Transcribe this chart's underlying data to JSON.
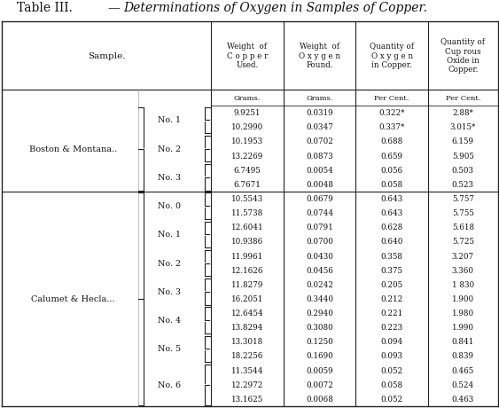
{
  "title_normal": "Table III.",
  "title_em_dash": "—",
  "title_italic": "Determinations of Oxygen in Samples of Copper.",
  "bg_color": "#ffffff",
  "text_color": "#111111",
  "col_headers": [
    "Weight  of\nC o p p e r\nUsed.",
    "Weight  of\nO x y g e n\nFound.",
    "Quantity of\nO x y g e n\nin Copper.",
    "Quantity of\nCup rous\nOxide in\nCopper."
  ],
  "col_subheaders": [
    "Grams.",
    "Grams.",
    "Per Cent.",
    "Per Cent."
  ],
  "groups": [
    {
      "label": "Boston & Montana..",
      "subgroups": [
        {
          "sub_label": "No. 1",
          "rows": [
            [
              "9.9251",
              "0.0319",
              "0.322*",
              "2.88*"
            ],
            [
              "10.2990",
              "0.0347",
              "0.337*",
              "3.015*"
            ]
          ]
        },
        {
          "sub_label": "No. 2",
          "rows": [
            [
              "10.1953",
              "0.0702",
              "0.688",
              "6.159"
            ],
            [
              "13.2269",
              "0.0873",
              "0.659",
              "5.905"
            ]
          ]
        },
        {
          "sub_label": "No. 3",
          "rows": [
            [
              "6.7495",
              "0.0054",
              "0.056",
              "0.503"
            ],
            [
              "6.7671",
              "0.0048",
              "0.058",
              "0.523"
            ]
          ]
        }
      ]
    },
    {
      "label": "Calumet & Hecla...",
      "subgroups": [
        {
          "sub_label": "No. 0",
          "rows": [
            [
              "10.5543",
              "0.0679",
              "0.643",
              "5.757"
            ],
            [
              "11.5738",
              "0.0744",
              "0.643",
              "5.755"
            ]
          ]
        },
        {
          "sub_label": "No. 1",
          "rows": [
            [
              "12.6041",
              "0.0791",
              "0.628",
              "5.618"
            ],
            [
              "10.9386",
              "0.0700",
              "0.640",
              "5.725"
            ]
          ]
        },
        {
          "sub_label": "No. 2",
          "rows": [
            [
              "11.9961",
              "0.0430",
              "0.358",
              "3.207"
            ],
            [
              "12.1626",
              "0.0456",
              "0.375",
              "3.360"
            ]
          ]
        },
        {
          "sub_label": "No. 3",
          "rows": [
            [
              "11.8279",
              "0.0242",
              "0.205",
              "1 830"
            ],
            [
              "16.2051",
              "0.3440",
              "0.212",
              "1.900"
            ]
          ]
        },
        {
          "sub_label": "No. 4",
          "rows": [
            [
              "12.6454",
              "0.2940",
              "0.221",
              "1.980"
            ],
            [
              "13.8294",
              "0.3080",
              "0.223",
              "1.990"
            ]
          ]
        },
        {
          "sub_label": "No. 5",
          "rows": [
            [
              "13.3018",
              "0.1250",
              "0.094",
              "0.841"
            ],
            [
              "18.2256",
              "0.1690",
              "0.093",
              "0.839"
            ]
          ]
        },
        {
          "sub_label": "No. 6",
          "rows": [
            [
              "11.3544",
              "0.0059",
              "0.052",
              "0.465"
            ],
            [
              "12.2972",
              "0.0072",
              "0.058",
              "0.524"
            ],
            [
              "13.1625",
              "0.0068",
              "0.052",
              "0.463"
            ]
          ]
        }
      ]
    }
  ]
}
